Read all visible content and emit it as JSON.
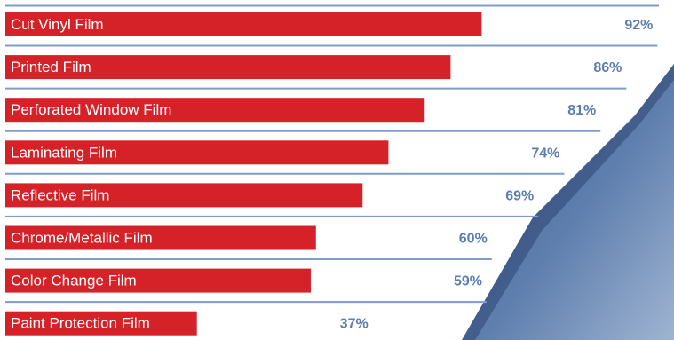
{
  "chart_data": {
    "type": "bar",
    "orientation": "horizontal",
    "categories": [
      "Cut Vinyl Film",
      "Printed Film",
      "Perforated Window Film",
      "Laminating Film",
      "Reflective Film",
      "Chrome/Metallic Film",
      "Color Change Film",
      "Paint Protection Film"
    ],
    "values": [
      92,
      86,
      81,
      74,
      69,
      60,
      59,
      37
    ],
    "value_suffix": "%",
    "xlim": [
      0,
      100
    ],
    "grid": false,
    "legend": "none"
  },
  "colors": {
    "bar": "#d52229",
    "bar_label_text": "#ffffff",
    "value_text": "#5b7db1",
    "rule_line": "#7f9ccc",
    "background": "#ffffff",
    "decor_blue": "#4f6e9e"
  }
}
